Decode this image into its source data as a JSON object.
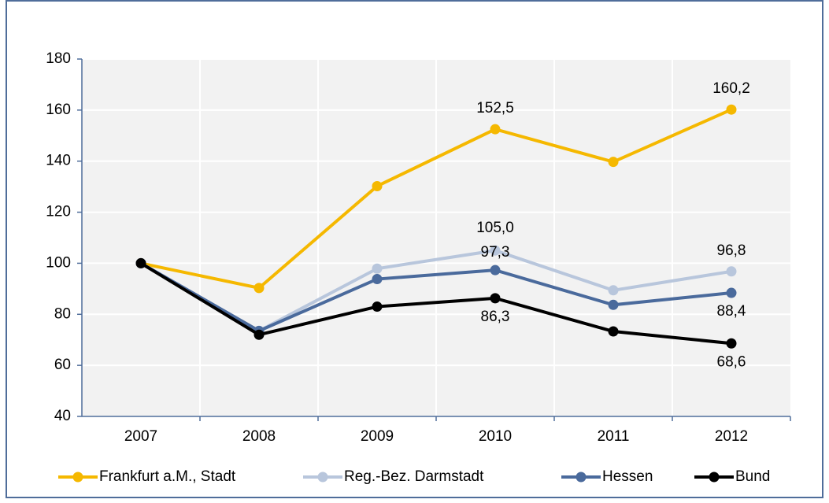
{
  "chart_data": {
    "type": "line",
    "categories": [
      "2007",
      "2008",
      "2009",
      "2010",
      "2011",
      "2012"
    ],
    "series": [
      {
        "name": "Frankfurt a.M., Stadt",
        "color": "#f5b800",
        "values": [
          100,
          90.3,
          130.2,
          152.5,
          139.7,
          160.2
        ],
        "value_labels": [
          null,
          null,
          null,
          "152,5",
          null,
          "160,2"
        ]
      },
      {
        "name": "Reg.-Bez. Darmstadt",
        "color": "#b8c6dc",
        "values": [
          100,
          73.5,
          97.9,
          105.0,
          89.4,
          96.8
        ],
        "value_labels": [
          null,
          null,
          null,
          "105,0",
          null,
          "96,8"
        ]
      },
      {
        "name": "Hessen",
        "color": "#4a6a9c",
        "values": [
          100,
          73.5,
          93.8,
          97.3,
          83.7,
          88.4
        ],
        "value_labels": [
          null,
          null,
          null,
          "97,3",
          null,
          "88,4"
        ]
      },
      {
        "name": "Bund",
        "color": "#000000",
        "values": [
          100,
          72,
          83,
          86.3,
          73.3,
          68.6
        ],
        "value_labels": [
          null,
          null,
          null,
          "86,3",
          null,
          "68,6"
        ]
      }
    ],
    "ylim": [
      40,
      180
    ],
    "yticks": [
      40,
      60,
      80,
      100,
      120,
      140,
      160,
      180
    ],
    "grid": true,
    "legend": "bottom"
  }
}
